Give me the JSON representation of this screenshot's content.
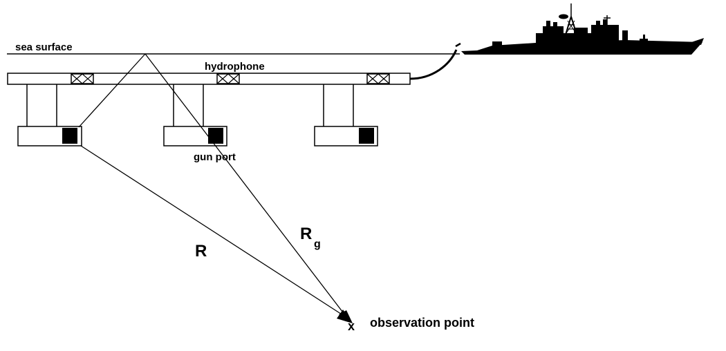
{
  "labels": {
    "sea_surface": "sea surface",
    "hydrophone": "hydrophone",
    "gun_port": "gun port",
    "range_main": "R",
    "range_ghost": "R",
    "range_ghost_subscript": "g",
    "observation_mark": "x",
    "observation_point": "observation point"
  },
  "colors": {
    "line": "#000000",
    "fill": "#ffffff",
    "solid": "#000000"
  },
  "icons": {
    "ship": "warship-silhouette-icon",
    "hydrophone": "hydrophone-crossbox-icon",
    "gun_port": "gun-port-square-icon",
    "arrow": "arrowhead-icon"
  }
}
